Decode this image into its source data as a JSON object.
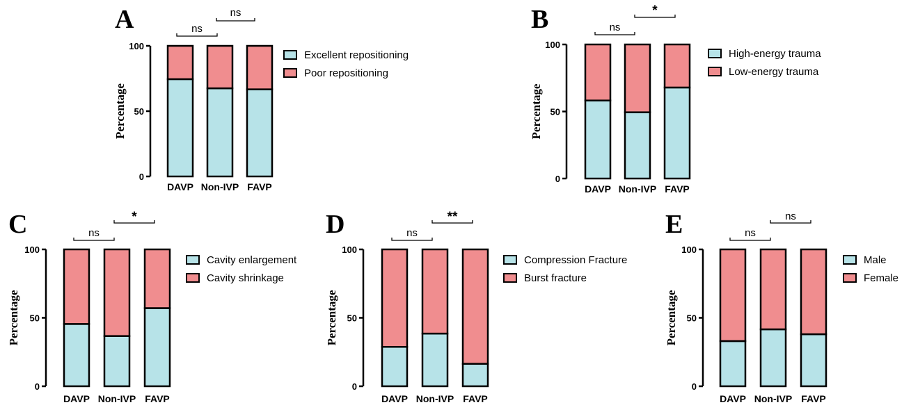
{
  "colors": {
    "series1": "#b7e3e8",
    "series2": "#f08d8f",
    "stroke": "#000000"
  },
  "chart_data": [
    {
      "panel": "A",
      "type": "bar",
      "stacked": true,
      "normalized": true,
      "ylabel": "Percentage",
      "ylim": [
        0,
        100
      ],
      "yticks": [
        "0",
        "50",
        "100"
      ],
      "categories": [
        "DAVP",
        "Non-IVP",
        "FAVP"
      ],
      "series": [
        {
          "name": "Excellent repositioning",
          "values": [
            74.5,
            67.5,
            66.7
          ]
        },
        {
          "name": "Poor repositioning",
          "values": [
            25.5,
            32.5,
            33.3
          ]
        }
      ],
      "significance": [
        {
          "pair": [
            "DAVP",
            "Non-IVP"
          ],
          "label": "ns"
        },
        {
          "pair": [
            "Non-IVP",
            "FAVP"
          ],
          "label": "ns"
        }
      ]
    },
    {
      "panel": "B",
      "type": "bar",
      "stacked": true,
      "normalized": true,
      "ylabel": "Percentage",
      "ylim": [
        0,
        100
      ],
      "yticks": [
        "0",
        "50",
        "100"
      ],
      "categories": [
        "DAVP",
        "Non-IVP",
        "FAVP"
      ],
      "series": [
        {
          "name": "High-energy trauma",
          "values": [
            58.2,
            49.4,
            67.9
          ]
        },
        {
          "name": "Low-energy trauma",
          "values": [
            41.8,
            50.6,
            32.1
          ]
        }
      ],
      "significance": [
        {
          "pair": [
            "DAVP",
            "Non-IVP"
          ],
          "label": "ns"
        },
        {
          "pair": [
            "Non-IVP",
            "FAVP"
          ],
          "label": "*"
        }
      ]
    },
    {
      "panel": "C",
      "type": "bar",
      "stacked": true,
      "normalized": true,
      "ylabel": "Percentage",
      "ylim": [
        0,
        100
      ],
      "yticks": [
        "0",
        "50",
        "100"
      ],
      "categories": [
        "DAVP",
        "Non-IVP",
        "FAVP"
      ],
      "series": [
        {
          "name": "Cavity enlargement",
          "values": [
            45.5,
            36.7,
            57.1
          ]
        },
        {
          "name": "Cavity shrinkage",
          "values": [
            54.5,
            63.3,
            42.9
          ]
        }
      ],
      "significance": [
        {
          "pair": [
            "DAVP",
            "Non-IVP"
          ],
          "label": "ns"
        },
        {
          "pair": [
            "Non-IVP",
            "FAVP"
          ],
          "label": "*"
        }
      ]
    },
    {
      "panel": "D",
      "type": "bar",
      "stacked": true,
      "normalized": true,
      "ylabel": "Percentage",
      "ylim": [
        0,
        100
      ],
      "yticks": [
        "0",
        "50",
        "100"
      ],
      "categories": [
        "DAVP",
        "Non-IVP",
        "FAVP"
      ],
      "series": [
        {
          "name": "Compression Fracture",
          "values": [
            28.8,
            38.5,
            16.4
          ]
        },
        {
          "name": "Burst fracture",
          "values": [
            71.2,
            61.5,
            83.6
          ]
        }
      ],
      "significance": [
        {
          "pair": [
            "DAVP",
            "Non-IVP"
          ],
          "label": "ns"
        },
        {
          "pair": [
            "Non-IVP",
            "FAVP"
          ],
          "label": "**"
        }
      ]
    },
    {
      "panel": "E",
      "type": "bar",
      "stacked": true,
      "normalized": true,
      "ylabel": "Percentage",
      "ylim": [
        0,
        100
      ],
      "yticks": [
        "0",
        "50",
        "100"
      ],
      "categories": [
        "DAVP",
        "Non-IVP",
        "FAVP"
      ],
      "series": [
        {
          "name": "Male",
          "values": [
            33.0,
            41.6,
            38.0
          ]
        },
        {
          "name": "Female",
          "values": [
            67.0,
            58.4,
            62.0
          ]
        }
      ],
      "significance": [
        {
          "pair": [
            "DAVP",
            "Non-IVP"
          ],
          "label": "ns"
        },
        {
          "pair": [
            "Non-IVP",
            "FAVP"
          ],
          "label": "ns"
        }
      ]
    }
  ]
}
